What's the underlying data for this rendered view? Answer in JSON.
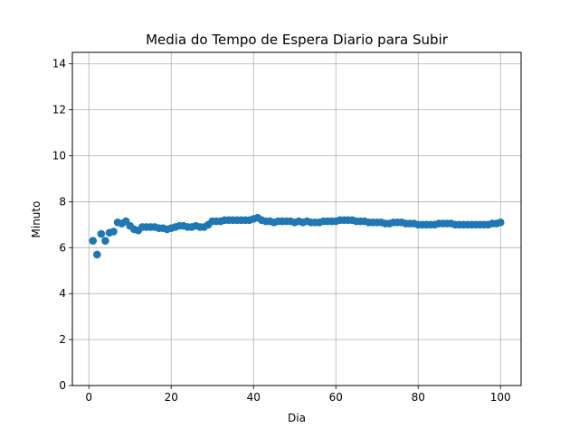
{
  "chart_data": {
    "type": "scatter",
    "title": "Media do Tempo de Espera Diario para Subir",
    "xlabel": "Dia",
    "ylabel": "Minuto",
    "xlim": [
      -4,
      105
    ],
    "ylim": [
      0,
      14.5
    ],
    "xticks": [
      0,
      20,
      40,
      60,
      80,
      100
    ],
    "yticks": [
      0,
      2,
      4,
      6,
      8,
      10,
      12,
      14
    ],
    "grid": true,
    "legend": "none",
    "marker_color": "#1f77b4",
    "x": [
      1,
      2,
      3,
      4,
      5,
      6,
      7,
      8,
      9,
      10,
      11,
      12,
      13,
      14,
      15,
      16,
      17,
      18,
      19,
      20,
      21,
      22,
      23,
      24,
      25,
      26,
      27,
      28,
      29,
      30,
      31,
      32,
      33,
      34,
      35,
      36,
      37,
      38,
      39,
      40,
      41,
      42,
      43,
      44,
      45,
      46,
      47,
      48,
      49,
      50,
      51,
      52,
      53,
      54,
      55,
      56,
      57,
      58,
      59,
      60,
      61,
      62,
      63,
      64,
      65,
      66,
      67,
      68,
      69,
      70,
      71,
      72,
      73,
      74,
      75,
      76,
      77,
      78,
      79,
      80,
      81,
      82,
      83,
      84,
      85,
      86,
      87,
      88,
      89,
      90,
      91,
      92,
      93,
      94,
      95,
      96,
      97,
      98,
      99,
      100
    ],
    "y": [
      6.3,
      5.7,
      6.6,
      6.3,
      6.65,
      6.7,
      7.1,
      7.05,
      7.15,
      6.95,
      6.8,
      6.75,
      6.9,
      6.9,
      6.9,
      6.9,
      6.85,
      6.85,
      6.8,
      6.85,
      6.9,
      6.95,
      6.95,
      6.9,
      6.9,
      6.95,
      6.9,
      6.9,
      7.0,
      7.15,
      7.15,
      7.15,
      7.2,
      7.2,
      7.2,
      7.2,
      7.2,
      7.2,
      7.2,
      7.25,
      7.3,
      7.2,
      7.15,
      7.15,
      7.1,
      7.15,
      7.15,
      7.15,
      7.15,
      7.1,
      7.15,
      7.1,
      7.15,
      7.1,
      7.1,
      7.1,
      7.15,
      7.15,
      7.15,
      7.15,
      7.2,
      7.2,
      7.2,
      7.2,
      7.15,
      7.15,
      7.15,
      7.1,
      7.1,
      7.1,
      7.1,
      7.05,
      7.05,
      7.1,
      7.1,
      7.1,
      7.05,
      7.05,
      7.05,
      7.0,
      7.0,
      7.0,
      7.0,
      7.0,
      7.05,
      7.05,
      7.05,
      7.05,
      7.0,
      7.0,
      7.0,
      7.0,
      7.0,
      7.0,
      7.0,
      7.0,
      7.0,
      7.05,
      7.05,
      7.1
    ]
  }
}
